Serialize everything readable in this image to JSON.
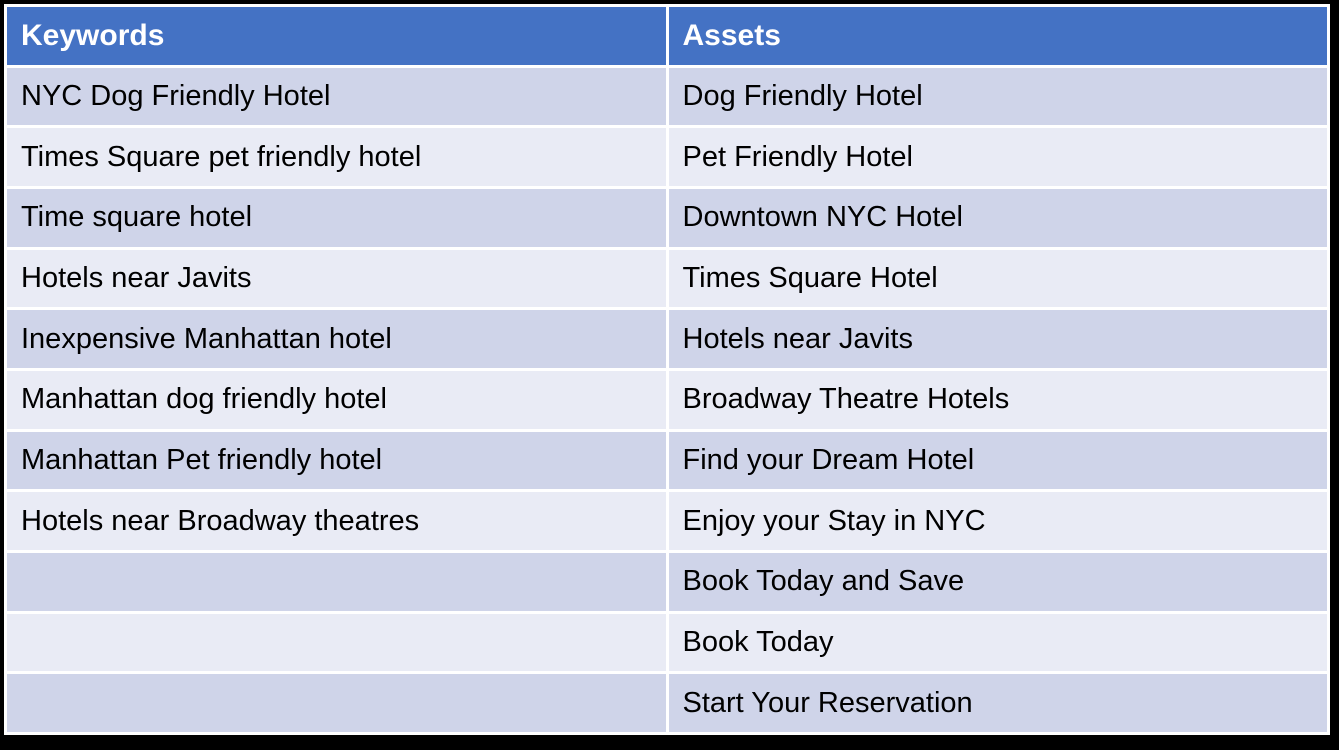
{
  "table": {
    "columns": [
      {
        "header": "Keywords"
      },
      {
        "header": "Assets"
      }
    ],
    "rows": [
      {
        "keyword": "NYC Dog Friendly Hotel",
        "asset": "Dog Friendly Hotel"
      },
      {
        "keyword": "Times Square pet friendly hotel",
        "asset": "Pet Friendly Hotel"
      },
      {
        "keyword": "Time square hotel",
        "asset": "Downtown NYC Hotel"
      },
      {
        "keyword": "Hotels near Javits",
        "asset": "Times Square Hotel"
      },
      {
        "keyword": "Inexpensive Manhattan hotel",
        "asset": "Hotels near Javits"
      },
      {
        "keyword": "Manhattan dog friendly hotel",
        "asset": "Broadway Theatre Hotels"
      },
      {
        "keyword": "Manhattan Pet friendly hotel",
        "asset": "Find your Dream Hotel"
      },
      {
        "keyword": "Hotels near Broadway theatres",
        "asset": "Enjoy your Stay in NYC"
      },
      {
        "keyword": "",
        "asset": "Book Today and Save"
      },
      {
        "keyword": "",
        "asset": "Book Today"
      },
      {
        "keyword": "",
        "asset": "Start Your Reservation"
      }
    ],
    "colors": {
      "header_bg": "#4472C4",
      "header_text": "#FFFFFF",
      "band_dark": "#CFD4E9",
      "band_light": "#E9EBF5",
      "separator": "#FFFFFF",
      "outer_border": "#000000",
      "body_text": "#000000"
    }
  }
}
